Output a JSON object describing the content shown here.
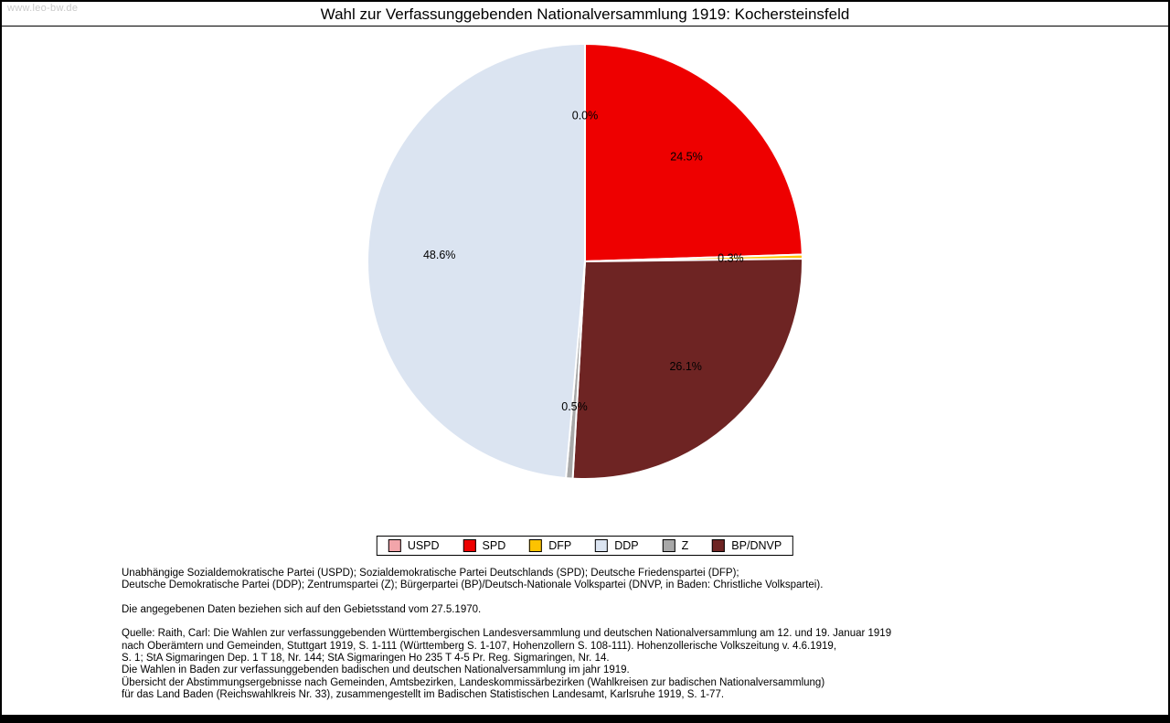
{
  "watermark": "www.leo-bw.de",
  "chart_data": {
    "type": "pie",
    "title": "Wahl zur Verfassunggebenden Nationalversammlung 1919: Kochersteinsfeld",
    "unit": "%",
    "direction": "clockwise",
    "start_angle_deg": 0,
    "slices_draw_order": [
      {
        "party": "USPD",
        "value": 0.0,
        "label": "0.0%",
        "color": "#f2a5aa"
      },
      {
        "party": "SPD",
        "value": 24.5,
        "label": "24.5%",
        "color": "#ee0000"
      },
      {
        "party": "DFP",
        "value": 0.3,
        "label": "0.3%",
        "color": "#fdc300"
      },
      {
        "party": "BP/DNVP",
        "value": 26.1,
        "label": "26.1%",
        "color": "#6e2423"
      },
      {
        "party": "Z",
        "value": 0.5,
        "label": "0.5%",
        "color": "#a8a8a8"
      },
      {
        "party": "DDP",
        "value": 48.6,
        "label": "48.6%",
        "color": "#dbe4f1"
      }
    ],
    "legend": [
      "USPD",
      "SPD",
      "DFP",
      "DDP",
      "Z",
      "BP/DNVP"
    ],
    "legend_position": "bottom"
  },
  "footnotes": {
    "abbreviations": [
      "Unabhängige Sozialdemokratische Partei (USPD); Sozialdemokratische Partei Deutschlands (SPD); Deutsche Friedenspartei (DFP);",
      "Deutsche Demokratische Partei (DDP); Zentrumspartei (Z); Bürgerpartei (BP)/Deutsch-Nationale Volkspartei (DNVP, in Baden: Christliche Volkspartei)."
    ],
    "note": "Die angegebenen Daten beziehen sich auf den Gebietsstand vom 27.5.1970.",
    "source": [
      "Quelle: Raith, Carl: Die Wahlen zur verfassunggebenden Württembergischen Landesversammlung und deutschen Nationalversammlung am 12. und 19. Januar 1919",
      "nach Oberämtern und Gemeinden, Stuttgart 1919, S. 1-111 (Württemberg S. 1-107, Hohenzollern S. 108-111). Hohenzollerische Volkszeitung v. 4.6.1919,",
      "S. 1; StA Sigmaringen Dep. 1 T 18, Nr. 144; StA Sigmaringen Ho 235 T 4-5 Pr. Reg. Sigmaringen, Nr. 14.",
      "Die Wahlen in Baden zur verfassunggebenden badischen und deutschen Nationalversammlung im jahr 1919.",
      "Übersicht der Abstimmungsergebnisse nach Gemeinden, Amtsbezirken, Landeskommissärbezirken (Wahlkreisen zur badischen Nationalversammlung)",
      "für das Land Baden (Reichswahlkreis Nr. 33), zusammengestellt im Badischen Statistischen Landesamt, Karlsruhe 1919, S. 1-77."
    ]
  }
}
